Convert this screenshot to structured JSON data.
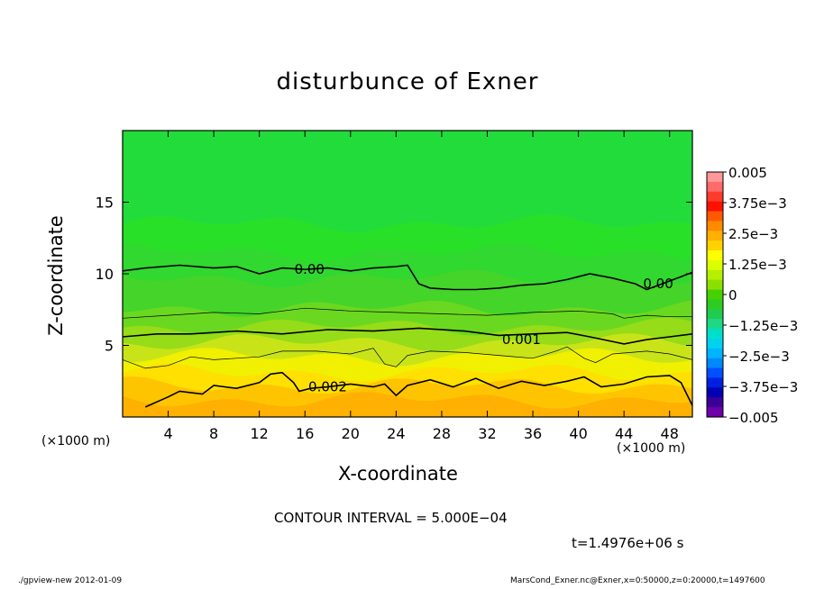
{
  "chart_data": {
    "type": "heatmap",
    "title": "disturbunce of Exner",
    "xlabel": "X-coordinate",
    "ylabel": "Z-coordinate",
    "x_unit_left": "(×1000 m)",
    "x_unit_right": "(×1000 m)",
    "xlim": [
      0,
      50
    ],
    "ylim": [
      0,
      20
    ],
    "x_ticks": [
      4,
      8,
      12,
      16,
      20,
      24,
      28,
      32,
      36,
      40,
      44,
      48
    ],
    "y_ticks": [
      5,
      10,
      15
    ],
    "contour_labels": [
      {
        "text": "0.00",
        "x": 16.4,
        "z": 10.3
      },
      {
        "text": "0.00",
        "x": 47.0,
        "z": 9.3
      },
      {
        "text": "0.001",
        "x": 35.0,
        "z": 5.4
      },
      {
        "text": "0.002",
        "x": 18.0,
        "z": 2.1
      }
    ],
    "contours": {
      "zero": [
        [
          0,
          10.2
        ],
        [
          2,
          10.4
        ],
        [
          5,
          10.6
        ],
        [
          8,
          10.4
        ],
        [
          10,
          10.5
        ],
        [
          12,
          10.0
        ],
        [
          13,
          10.2
        ],
        [
          14,
          10.4
        ],
        [
          16,
          10.3
        ],
        [
          18,
          10.4
        ],
        [
          20,
          10.2
        ],
        [
          22,
          10.4
        ],
        [
          24,
          10.5
        ],
        [
          25,
          10.6
        ],
        [
          26,
          9.3
        ],
        [
          27,
          9.0
        ],
        [
          29,
          8.9
        ],
        [
          31,
          8.9
        ],
        [
          33,
          9.0
        ],
        [
          35,
          9.2
        ],
        [
          37,
          9.3
        ],
        [
          39,
          9.6
        ],
        [
          41,
          10.0
        ],
        [
          43,
          9.7
        ],
        [
          45,
          9.3
        ],
        [
          46,
          8.9
        ],
        [
          47,
          9.2
        ],
        [
          48,
          9.5
        ],
        [
          49,
          9.8
        ],
        [
          50,
          10.1
        ]
      ],
      "c0005": [
        [
          0,
          6.9
        ],
        [
          4,
          7.1
        ],
        [
          8,
          7.3
        ],
        [
          12,
          7.2
        ],
        [
          16,
          7.6
        ],
        [
          20,
          7.4
        ],
        [
          24,
          7.3
        ],
        [
          28,
          7.2
        ],
        [
          32,
          7.1
        ],
        [
          36,
          7.3
        ],
        [
          40,
          7.4
        ],
        [
          43,
          7.2
        ],
        [
          44,
          6.9
        ],
        [
          46,
          7.1
        ],
        [
          48,
          7.0
        ],
        [
          50,
          7.0
        ]
      ],
      "c001": [
        [
          0,
          5.6
        ],
        [
          3,
          5.8
        ],
        [
          6,
          5.8
        ],
        [
          10,
          6.0
        ],
        [
          14,
          5.8
        ],
        [
          18,
          6.1
        ],
        [
          22,
          6.0
        ],
        [
          26,
          6.2
        ],
        [
          30,
          6.0
        ],
        [
          33,
          5.7
        ],
        [
          36,
          5.8
        ],
        [
          39,
          5.9
        ],
        [
          41,
          5.6
        ],
        [
          44,
          5.1
        ],
        [
          46,
          5.4
        ],
        [
          48,
          5.6
        ],
        [
          50,
          5.8
        ]
      ],
      "c0015": [
        [
          0,
          4.0
        ],
        [
          2,
          3.4
        ],
        [
          4,
          3.6
        ],
        [
          6,
          4.2
        ],
        [
          8,
          4.0
        ],
        [
          12,
          4.2
        ],
        [
          14,
          4.6
        ],
        [
          17,
          4.6
        ],
        [
          20,
          4.4
        ],
        [
          22,
          4.8
        ],
        [
          23,
          3.7
        ],
        [
          24,
          3.5
        ],
        [
          25,
          4.3
        ],
        [
          27,
          4.6
        ],
        [
          30,
          4.5
        ],
        [
          33,
          4.3
        ],
        [
          36,
          4.1
        ],
        [
          38,
          4.6
        ],
        [
          39,
          4.9
        ],
        [
          40.5,
          4.1
        ],
        [
          41.5,
          3.8
        ],
        [
          43,
          4.4
        ],
        [
          46,
          4.6
        ],
        [
          48,
          4.4
        ],
        [
          50,
          4.0
        ]
      ],
      "c002": [
        [
          2,
          0.7
        ],
        [
          4,
          1.4
        ],
        [
          5,
          1.8
        ],
        [
          7,
          1.6
        ],
        [
          8,
          2.2
        ],
        [
          10,
          2.0
        ],
        [
          12,
          2.4
        ],
        [
          13,
          3.0
        ],
        [
          14,
          3.1
        ],
        [
          15,
          2.4
        ],
        [
          15.5,
          1.8
        ],
        [
          16.5,
          2.0
        ],
        [
          18,
          2.1
        ],
        [
          20,
          2.3
        ],
        [
          22,
          2.1
        ],
        [
          23,
          2.3
        ],
        [
          24,
          1.5
        ],
        [
          25,
          2.2
        ],
        [
          27,
          2.6
        ],
        [
          29,
          2.1
        ],
        [
          31,
          2.7
        ],
        [
          33,
          2.0
        ],
        [
          35,
          2.5
        ],
        [
          37,
          2.2
        ],
        [
          39,
          2.5
        ],
        [
          40.5,
          2.8
        ],
        [
          42,
          2.1
        ],
        [
          44,
          2.3
        ],
        [
          46,
          2.8
        ],
        [
          48,
          2.9
        ],
        [
          49,
          2.4
        ],
        [
          50,
          0.8
        ]
      ]
    }
  },
  "colorbar": {
    "labels": [
      "0.005",
      "3.75e−3",
      "2.5e−3",
      "1.25e−3",
      "0",
      "−1.25e−3",
      "−2.5e−3",
      "−3.75e−3",
      "−0.005"
    ],
    "colors": [
      "#ff9898",
      "#ff6a6a",
      "#ff3c2c",
      "#ff1000",
      "#ff5a00",
      "#ff8a00",
      "#ffb000",
      "#ffd200",
      "#ffff00",
      "#dcff00",
      "#b4f000",
      "#8ce000",
      "#46d200",
      "#2ecc22",
      "#20cc50",
      "#1ed886",
      "#00e0c8",
      "#00d2f0",
      "#00b4ff",
      "#0088ff",
      "#0050ff",
      "#0020e0",
      "#0000b4",
      "#3c0096",
      "#6e00aa"
    ]
  },
  "bands": {
    "colors": [
      "#28e028",
      "#30d830",
      "#44d42a",
      "#6ad820",
      "#96dc18",
      "#c8e418",
      "#f0f000",
      "#ffe000",
      "#ffc400",
      "#ffb000"
    ],
    "levels_z": [
      13.5,
      11.5,
      9.7,
      7.6,
      6.3,
      5.2,
      4.2,
      3.1,
      2.2,
      1.2
    ]
  },
  "annotations": {
    "contour_interval": "CONTOUR INTERVAL = 5.000E−04",
    "time": "t=1.4976e+06 s",
    "footer_left": "./gpview-new   2012-01-09",
    "footer_right": "MarsCond_Exner.nc@Exner,x=0:50000,z=0:20000,t=1497600"
  }
}
